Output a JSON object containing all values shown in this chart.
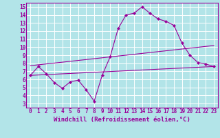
{
  "xlabel": "Windchill (Refroidissement éolien,°C)",
  "xlim": [
    -0.5,
    23.5
  ],
  "ylim": [
    2.5,
    15.5
  ],
  "xticks": [
    0,
    1,
    2,
    3,
    4,
    5,
    6,
    7,
    8,
    9,
    10,
    11,
    12,
    13,
    14,
    15,
    16,
    17,
    18,
    19,
    20,
    21,
    22,
    23
  ],
  "yticks": [
    3,
    4,
    5,
    6,
    7,
    8,
    9,
    10,
    11,
    12,
    13,
    14,
    15
  ],
  "background_color": "#b2e4e8",
  "grid_color": "#ffffff",
  "line_color": "#990099",
  "data_x": [
    0,
    1,
    2,
    3,
    4,
    5,
    6,
    7,
    8,
    9,
    10,
    11,
    12,
    13,
    14,
    15,
    16,
    17,
    18,
    19,
    20,
    21,
    22,
    23
  ],
  "data_y": [
    6.5,
    7.6,
    6.7,
    5.6,
    4.9,
    5.7,
    5.9,
    4.7,
    3.3,
    6.5,
    8.8,
    12.3,
    14.0,
    14.2,
    15.0,
    14.2,
    13.5,
    13.2,
    12.7,
    10.5,
    9.0,
    8.1,
    7.9,
    7.6
  ],
  "trend1_x": [
    0,
    23
  ],
  "trend1_y": [
    7.7,
    10.2
  ],
  "trend2_x": [
    0,
    23
  ],
  "trend2_y": [
    6.5,
    7.6
  ],
  "tick_fontsize": 5.5,
  "xlabel_fontsize": 6.5
}
